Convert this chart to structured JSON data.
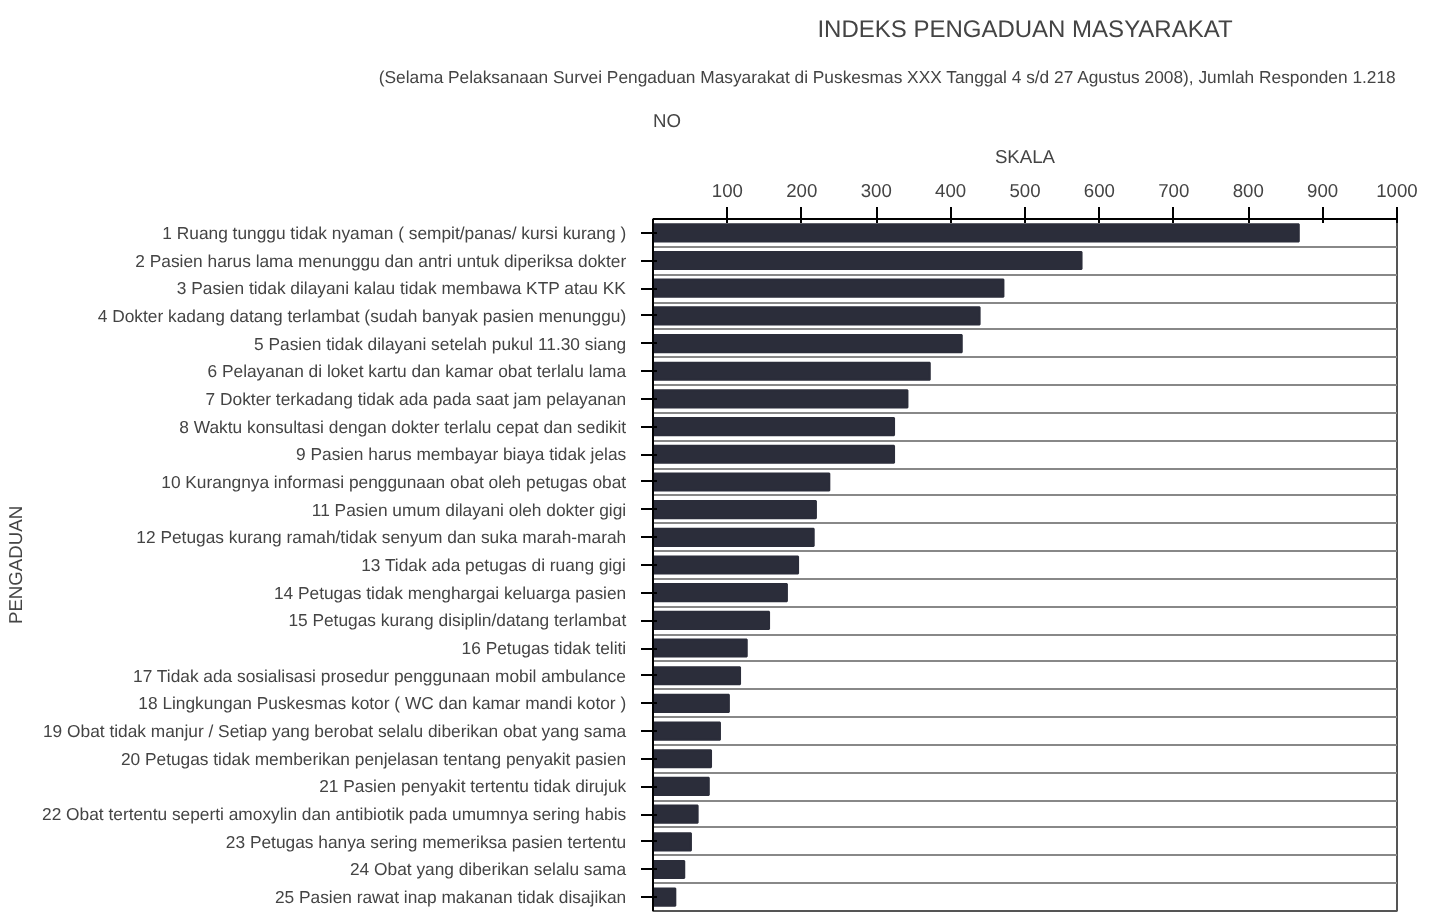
{
  "chart_data": {
    "type": "bar",
    "orientation": "horizontal",
    "title": "INDEKS PENGADUAN MASYARAKAT",
    "subtitle": "(Selama Pelaksanaan Survei Pengaduan Masyarakat di Puskesmas XXX Tanggal 4 s/d 27 Agustus 2008), Jumlah Responden 1.218",
    "ylabel": "PENGADUAN",
    "xlabel": "SKALA",
    "annotations": [
      "NO"
    ],
    "categories": [
      "1  Ruang tunggu tidak nyaman ( sempit/panas/ kursi kurang )",
      "2  Pasien harus lama menunggu dan antri untuk diperiksa dokter",
      "3  Pasien tidak dilayani kalau tidak membawa KTP atau KK",
      "4  Dokter kadang datang terlambat (sudah banyak pasien menunggu)",
      "5  Pasien tidak dilayani setelah pukul 11.30 siang",
      "6  Pelayanan di loket kartu dan kamar obat terlalu lama",
      "7  Dokter terkadang tidak ada pada saat jam pelayanan",
      "8  Waktu konsultasi dengan dokter terlalu cepat dan sedikit",
      "9  Pasien harus membayar biaya tidak jelas",
      "10  Kurangnya informasi penggunaan obat oleh petugas obat",
      "11  Pasien umum dilayani oleh dokter gigi",
      "12  Petugas kurang ramah/tidak senyum dan suka marah-marah",
      "13  Tidak ada petugas di ruang gigi",
      "14  Petugas tidak menghargai keluarga pasien",
      "15  Petugas kurang disiplin/datang terlambat",
      "16  Petugas tidak teliti",
      "17  Tidak ada sosialisasi prosedur penggunaan mobil ambulance",
      "18  Lingkungan Puskesmas kotor ( WC dan kamar mandi kotor )",
      "19  Obat tidak manjur / Setiap yang berobat selalu diberikan obat yang sama",
      "20  Petugas tidak memberikan penjelasan tentang penyakit pasien",
      "21  Pasien penyakit tertentu tidak dirujuk",
      "22  Obat tertentu seperti amoxylin dan antibiotik pada umumnya sering habis",
      "23  Petugas hanya sering memeriksa pasien tertentu",
      "24  Obat yang diberikan selalu sama",
      "25  Pasien rawat inap makanan tidak disajikan"
    ],
    "values": [
      868,
      576,
      471,
      439,
      415,
      372,
      342,
      324,
      324,
      237,
      219,
      216,
      195,
      180,
      156,
      126,
      117,
      102,
      90,
      78,
      75,
      60,
      51,
      42,
      30
    ],
    "color": "#2b2d3a",
    "xlim": [
      0,
      1000
    ],
    "xticks": [
      100,
      200,
      300,
      400,
      500,
      600,
      700,
      800,
      900,
      1000
    ]
  }
}
